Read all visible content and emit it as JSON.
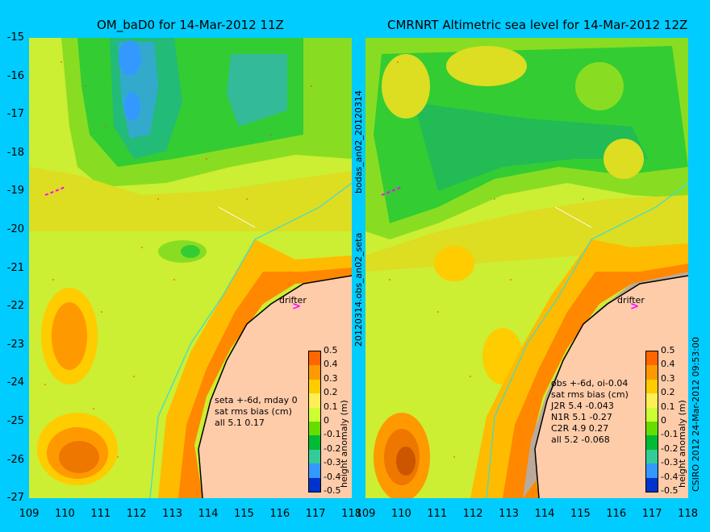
{
  "left_panel": {
    "title": "OM_baD0 for 14-Mar-2012 11Z",
    "annotation": [
      "seta +-6d, mday 0",
      "sat rms bias (cm)",
      "all 5.1 0.17"
    ]
  },
  "right_panel": {
    "title": "CMRNRT Altimetric sea level  for 14-Mar-2012 12Z",
    "annotation": [
      "obs +-6d, oi-0.04",
      "sat rms bias (cm)",
      "J2R   5.4 -0.043",
      "N1R   5.1 -0.27",
      "C2R   4.9 0.27",
      "all 5.2 -0.068"
    ]
  },
  "side_labels": {
    "upper": "bodas_an02_20120314",
    "lower": "20120314.obs_an02_seta",
    "credit": "CSIRO 2012  24-Mar-2012 09:53:00"
  },
  "drifter_label": "drifter",
  "colorbar": {
    "label": "height anomaly (m)",
    "ticks": [
      "0.5",
      "0.4",
      "0.3",
      "0.2",
      "0.1",
      "0",
      "-0.1",
      "-0.2",
      "-0.3",
      "-0.4",
      "-0.5"
    ],
    "colors": [
      "#ff6600",
      "#ff9900",
      "#ffcc00",
      "#ffee55",
      "#ccff33",
      "#66dd00",
      "#00bb33",
      "#33cc99",
      "#3399ff",
      "#0033cc"
    ]
  },
  "axes": {
    "y_ticks": [
      "-15",
      "-16",
      "-17",
      "-18",
      "-19",
      "-20",
      "-21",
      "-22",
      "-23",
      "-24",
      "-25",
      "-26",
      "-27"
    ],
    "x_ticks": [
      "109",
      "110",
      "111",
      "112",
      "113",
      "114",
      "115",
      "116",
      "117",
      "118"
    ]
  }
}
